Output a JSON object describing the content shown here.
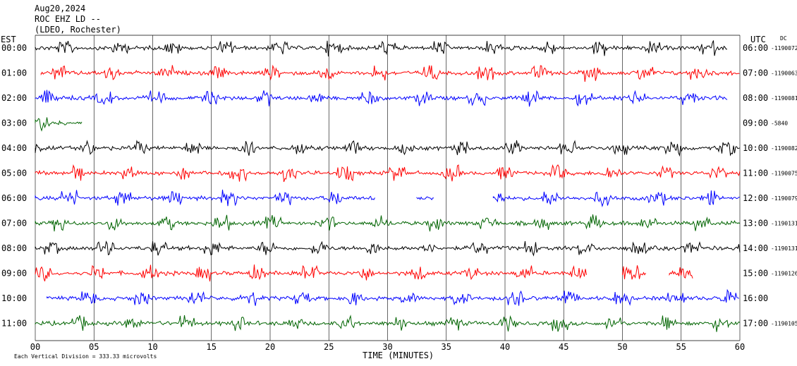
{
  "header": {
    "date": "Aug20,2024",
    "station": "ROC EHZ LD --",
    "network": "(LDEO, Rochester)"
  },
  "left_axis_title": "EST",
  "right_axis_title": "UTC",
  "dc_title": "DC",
  "footer": {
    "scale_note": "Each Vertical Division =  333.33 microvolts",
    "x_title": "TIME (MINUTES)"
  },
  "chart_data": {
    "type": "line",
    "title": "",
    "xlabel": "TIME (MINUTES)",
    "ylabel": "",
    "xlim": [
      0,
      60
    ],
    "x_ticks": [
      "00",
      "05",
      "10",
      "15",
      "20",
      "25",
      "30",
      "35",
      "40",
      "45",
      "50",
      "55",
      "60"
    ],
    "grid": true,
    "colors": [
      "#000000",
      "#ff0000",
      "#0000ff",
      "#006400"
    ],
    "rows": [
      {
        "est": "00:00",
        "utc": "06:00",
        "dc": "-1190072",
        "color": "#000000",
        "segments": [
          [
            0,
            59
          ]
        ]
      },
      {
        "est": "01:00",
        "utc": "07:00",
        "dc": "-1190063",
        "color": "#ff0000",
        "segments": [
          [
            0.5,
            60
          ]
        ]
      },
      {
        "est": "02:00",
        "utc": "08:00",
        "dc": "-1190081",
        "color": "#0000ff",
        "segments": [
          [
            0,
            59
          ]
        ]
      },
      {
        "est": "03:00",
        "utc": "09:00",
        "dc": "-5840",
        "color": "#006400",
        "segments": [
          [
            0,
            4
          ]
        ]
      },
      {
        "est": "04:00",
        "utc": "10:00",
        "dc": "-1190082",
        "color": "#000000",
        "segments": [
          [
            0,
            60
          ]
        ]
      },
      {
        "est": "05:00",
        "utc": "11:00",
        "dc": "-1190075",
        "color": "#ff0000",
        "segments": [
          [
            0,
            60
          ]
        ]
      },
      {
        "est": "06:00",
        "utc": "12:00",
        "dc": "-1190079",
        "color": "#0000ff",
        "segments": [
          [
            0,
            29
          ],
          [
            32.5,
            34
          ],
          [
            39,
            60
          ]
        ]
      },
      {
        "est": "07:00",
        "utc": "13:00",
        "dc": "-1190131",
        "color": "#006400",
        "segments": [
          [
            0,
            60
          ]
        ]
      },
      {
        "est": "08:00",
        "utc": "14:00",
        "dc": "-1190131",
        "color": "#000000",
        "segments": [
          [
            0,
            60
          ]
        ]
      },
      {
        "est": "09:00",
        "utc": "15:00",
        "dc": "-1190126",
        "color": "#ff0000",
        "segments": [
          [
            0,
            47
          ],
          [
            50,
            52
          ],
          [
            54,
            56
          ]
        ]
      },
      {
        "est": "10:00",
        "utc": "16:00",
        "dc": "",
        "color": "#0000ff",
        "segments": [
          [
            1,
            60
          ]
        ]
      },
      {
        "est": "11:00",
        "utc": "17:00",
        "dc": "-1190105",
        "color": "#006400",
        "segments": [
          [
            0,
            60
          ]
        ]
      }
    ]
  }
}
